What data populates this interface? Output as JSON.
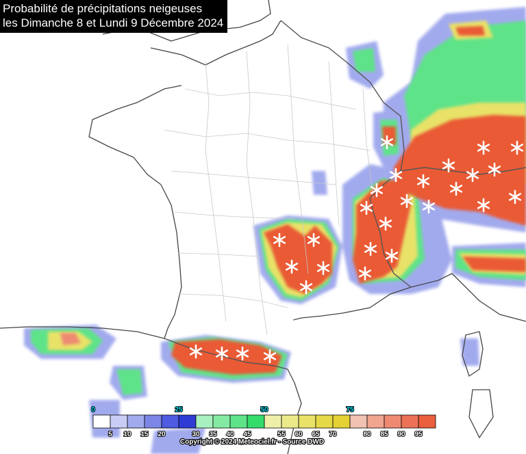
{
  "title": {
    "line1": "Probabilité de précipitations neigeuses",
    "line2": "les Dimanche 8 et Lundi 9 Décembre 2024"
  },
  "legend": {
    "unit_note": "",
    "major_labels": [
      "0",
      "25",
      "50",
      "75"
    ],
    "minor_labels": [
      "5",
      "10",
      "15",
      "20",
      "30",
      "35",
      "40",
      "45",
      "55",
      "60",
      "65",
      "70",
      "80",
      "85",
      "90",
      "95"
    ],
    "colors": [
      "#ffffff",
      "#c9cdf5",
      "#a2aaee",
      "#7c86e6",
      "#4f5be0",
      "#2f3cd4",
      "#a8f0bf",
      "#84eaa3",
      "#5fe389",
      "#35dc6c",
      "#eef0a9",
      "#ece98a",
      "#e9e268",
      "#e5d947",
      "#e4d235",
      "#f1c1b2",
      "#f1a48f",
      "#ee8a72",
      "#ec7257",
      "#e95e3c"
    ]
  },
  "copyright": "Copyright © 2024 Meteociel.fr - Source DWD",
  "colors": {
    "blue": "#4f5be0",
    "light_blue": "#b9c0f2",
    "green": "#5fe389",
    "yellow": "#e9e268",
    "red": "#e95a35",
    "border": "#555555"
  }
}
